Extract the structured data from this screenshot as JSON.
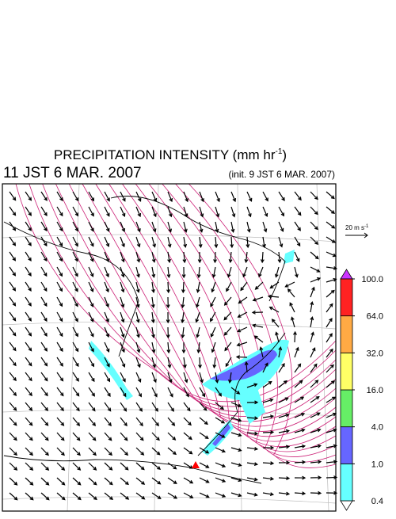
{
  "header": {
    "title": {
      "text": "PRECIPITATION INTENSITY (mm hr",
      "superscript": "-1",
      "close": ")"
    },
    "valid_time": "11 JST 6 MAR. 2007",
    "init_time": "(init. 9 JST 6 MAR. 2007)"
  },
  "wind_scale": {
    "text": "20 m s",
    "superscript": "-1"
  },
  "colorbar": {
    "levels": [
      {
        "value": 0.4,
        "label": "0.4"
      },
      {
        "value": 1,
        "label": "1.0"
      },
      {
        "value": 4,
        "label": "4.0"
      },
      {
        "value": 16,
        "label": "16.0"
      },
      {
        "value": 32,
        "label": "32.0"
      },
      {
        "value": 64,
        "label": "64.0"
      },
      {
        "value": 100,
        "label": "100.0"
      }
    ],
    "colors": [
      "#66ffff",
      "#6666ff",
      "#66ee66",
      "#ffff66",
      "#ffaa44",
      "#ff2222"
    ],
    "under_color": "#ffffff",
    "over_color": "#cc33ff"
  }
}
